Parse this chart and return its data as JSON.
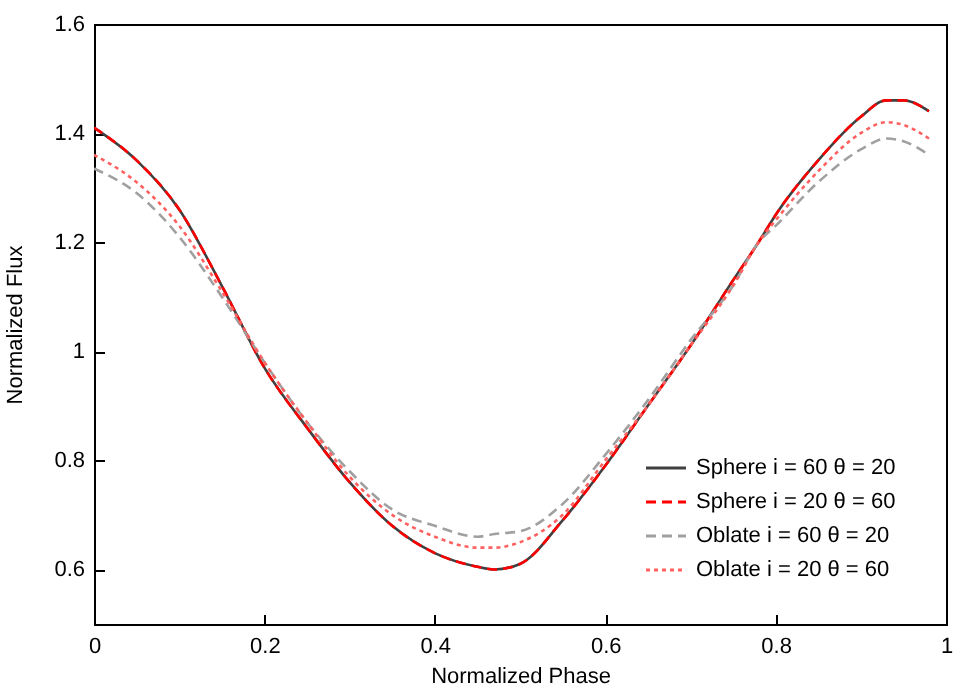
{
  "chart_data": {
    "type": "line",
    "xlabel": "Normalized Phase",
    "ylabel": "Normalized Flux",
    "x": [
      0,
      0.05,
      0.1,
      0.15,
      0.2,
      0.25,
      0.3,
      0.35,
      0.4,
      0.45,
      0.47,
      0.5,
      0.55,
      0.6,
      0.65,
      0.7,
      0.75,
      0.78,
      0.8,
      0.85,
      0.9,
      0.93,
      0.95,
      0.98
    ],
    "series": [
      {
        "name": "Sphere i = 60  θ = 20",
        "color": "#404040",
        "line_style": "solid",
        "values": [
          1.41,
          1.35,
          1.26,
          1.12,
          0.97,
          0.86,
          0.76,
          0.68,
          0.63,
          0.605,
          0.6,
          0.61,
          0.69,
          0.79,
          0.9,
          1.01,
          1.13,
          1.2,
          1.25,
          1.35,
          1.43,
          1.46,
          1.46,
          1.44
        ]
      },
      {
        "name": "Sphere i = 20  θ = 60",
        "color": "#ff0000",
        "line_style": "dashed",
        "values": [
          1.41,
          1.35,
          1.26,
          1.12,
          0.97,
          0.86,
          0.76,
          0.68,
          0.63,
          0.605,
          0.6,
          0.61,
          0.69,
          0.79,
          0.9,
          1.01,
          1.13,
          1.2,
          1.25,
          1.35,
          1.43,
          1.46,
          1.46,
          1.44
        ]
      },
      {
        "name": "Oblate i = 60  θ = 20",
        "color": "#a0a0a0",
        "line_style": "dashed",
        "values": [
          1.335,
          1.29,
          1.21,
          1.1,
          0.98,
          0.87,
          0.78,
          0.71,
          0.68,
          0.66,
          0.665,
          0.67,
          0.72,
          0.81,
          0.91,
          1.02,
          1.12,
          1.2,
          1.23,
          1.31,
          1.37,
          1.39,
          1.385,
          1.36
        ]
      },
      {
        "name": "Oblate i = 20  θ = 60",
        "color": "#ff6060",
        "line_style": "dotted",
        "values": [
          1.36,
          1.31,
          1.23,
          1.11,
          0.98,
          0.87,
          0.77,
          0.7,
          0.66,
          0.64,
          0.64,
          0.65,
          0.7,
          0.8,
          0.9,
          1.01,
          1.12,
          1.2,
          1.24,
          1.33,
          1.4,
          1.42,
          1.415,
          1.39
        ]
      }
    ],
    "xlim": [
      0,
      1
    ],
    "xticks": [
      0,
      0.2,
      0.4,
      0.6,
      0.8,
      1
    ],
    "ylim": [
      0.5,
      1.6
    ],
    "yticks": [
      0.6,
      0.8,
      1,
      1.2,
      1.4,
      1.6
    ],
    "legend": "bottom right",
    "grid": false
  }
}
